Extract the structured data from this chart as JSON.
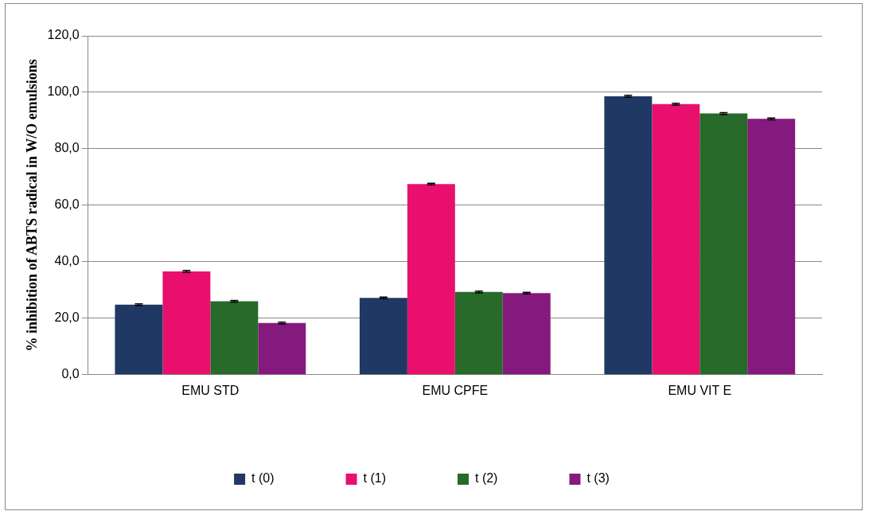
{
  "chart_data": {
    "type": "bar",
    "ylabel": "% inhibition of ABTS radical in W/O emulsions",
    "categories": [
      "EMU STD",
      "EMU CPFE",
      "EMU VIT E"
    ],
    "series": [
      {
        "name": "t (0)",
        "color": "#1f3864",
        "values": [
          24.8,
          27.2,
          98.6
        ],
        "errors": [
          0.3,
          0.3,
          0.3
        ]
      },
      {
        "name": "t (1)",
        "color": "#e8106c",
        "values": [
          36.6,
          67.5,
          95.8
        ],
        "errors": [
          0.3,
          0.3,
          0.3
        ]
      },
      {
        "name": "t (2)",
        "color": "#276a2a",
        "values": [
          26.0,
          29.3,
          92.5
        ],
        "errors": [
          0.3,
          0.3,
          0.3
        ]
      },
      {
        "name": "t (3)",
        "color": "#86197e",
        "values": [
          18.3,
          28.9,
          90.6
        ],
        "errors": [
          0.3,
          0.3,
          0.3
        ]
      }
    ],
    "ylim": [
      0,
      120
    ],
    "yticks": [
      {
        "value": 0,
        "label": "0,0"
      },
      {
        "value": 20,
        "label": "20,0"
      },
      {
        "value": 40,
        "label": "40,0"
      },
      {
        "value": 60,
        "label": "60,0"
      },
      {
        "value": 80,
        "label": "80,0"
      },
      {
        "value": 100,
        "label": "100,0"
      },
      {
        "value": 120,
        "label": "120,0"
      }
    ],
    "grid": "y",
    "legend": "bottom"
  }
}
